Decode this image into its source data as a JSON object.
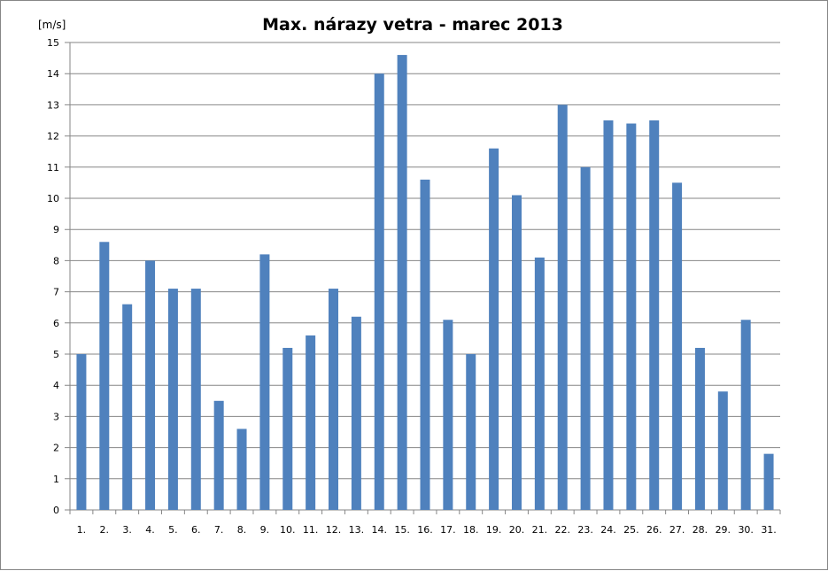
{
  "chart_data": {
    "type": "bar",
    "title": "Max. nárazy vetra - marec 2013",
    "ylabel": "[m/s]",
    "xlabel": "",
    "ylim": [
      0,
      15
    ],
    "y_ticks": [
      "0",
      "1",
      "2",
      "3",
      "4",
      "5",
      "6",
      "7",
      "8",
      "9",
      "10",
      "11",
      "12",
      "13",
      "14",
      "15"
    ],
    "grid": true,
    "legend": "none",
    "bar_color": "#4F81BD",
    "categories": [
      "1.",
      "2.",
      "3.",
      "4.",
      "5.",
      "6.",
      "7.",
      "8.",
      "9.",
      "10.",
      "11.",
      "12.",
      "13.",
      "14.",
      "15.",
      "16.",
      "17.",
      "18.",
      "19.",
      "20.",
      "21.",
      "22.",
      "23.",
      "24.",
      "25.",
      "26.",
      "27.",
      "28.",
      "29.",
      "30.",
      "31."
    ],
    "values": [
      5.0,
      8.6,
      6.6,
      8.0,
      7.1,
      7.1,
      3.5,
      2.6,
      8.2,
      5.2,
      5.6,
      7.1,
      6.2,
      14.0,
      14.6,
      10.6,
      6.1,
      5.0,
      11.6,
      10.1,
      8.1,
      13.0,
      11.0,
      12.5,
      12.4,
      12.5,
      10.5,
      5.2,
      3.8,
      6.1,
      1.8
    ]
  }
}
